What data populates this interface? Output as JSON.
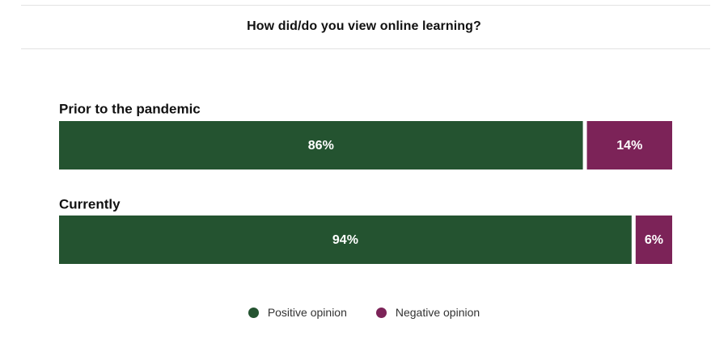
{
  "colors": {
    "positive": "#245330",
    "negative": "#7c2358"
  },
  "chart_data": {
    "type": "bar",
    "orientation": "horizontal",
    "stacked": true,
    "title": "How did/do you view online learning?",
    "categories": [
      "Prior to the pandemic",
      "Currently"
    ],
    "series": [
      {
        "name": "Positive opinion",
        "values": [
          86,
          94
        ],
        "labels": [
          "86%",
          "94%"
        ],
        "color": "#245330"
      },
      {
        "name": "Negative opinion",
        "values": [
          14,
          6
        ],
        "labels": [
          "14%",
          "6%"
        ],
        "color": "#7c2358"
      }
    ],
    "xlim": [
      0,
      100
    ],
    "unit": "%",
    "grid": false,
    "legend": "bottom-center"
  }
}
